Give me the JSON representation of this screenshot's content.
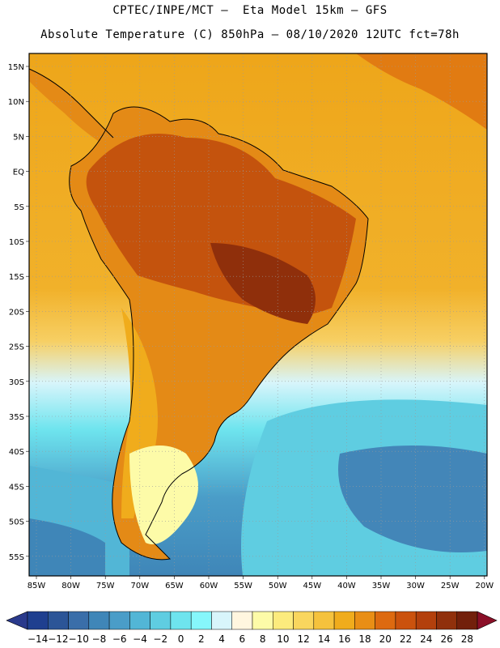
{
  "header": {
    "title_line1": "CPTEC/INPE/MCT –  Eta Model 15km – GFS",
    "title_line2": "Absolute Temperature (C) 850hPa – 08/10/2020 12UTC fct=78h"
  },
  "map": {
    "lat_labels": [
      "15N",
      "10N",
      "5N",
      "EQ",
      "5S",
      "10S",
      "15S",
      "20S",
      "25S",
      "30S",
      "35S",
      "40S",
      "45S",
      "50S",
      "55S"
    ],
    "lon_labels": [
      "85W",
      "80W",
      "75W",
      "70W",
      "65W",
      "60W",
      "55W",
      "50W",
      "45W",
      "40W",
      "35W",
      "30W",
      "25W",
      "20W"
    ]
  },
  "colorbar": {
    "labels": [
      "-14",
      "-12",
      "-10",
      "-8",
      "-6",
      "-4",
      "-2",
      "0",
      "2",
      "4",
      "6",
      "8",
      "10",
      "12",
      "14",
      "16",
      "18",
      "20",
      "22",
      "24",
      "26",
      "28"
    ],
    "colors": [
      "#1f3f8f",
      "#2c5597",
      "#3a6ea9",
      "#3f86b8",
      "#4a9dc8",
      "#52b6d6",
      "#5fcde1",
      "#6ee4ee",
      "#86f7fb",
      "#d8f5fb",
      "#fff6df",
      "#fdfba8",
      "#fceb7d",
      "#f9d65e",
      "#f5c23d",
      "#f0ac1c",
      "#e98e15",
      "#dd6a10",
      "#cb520d",
      "#b3400c",
      "#90300c",
      "#72200b"
    ],
    "under_color": "#2a3a8c",
    "over_color": "#8a0f27"
  }
}
